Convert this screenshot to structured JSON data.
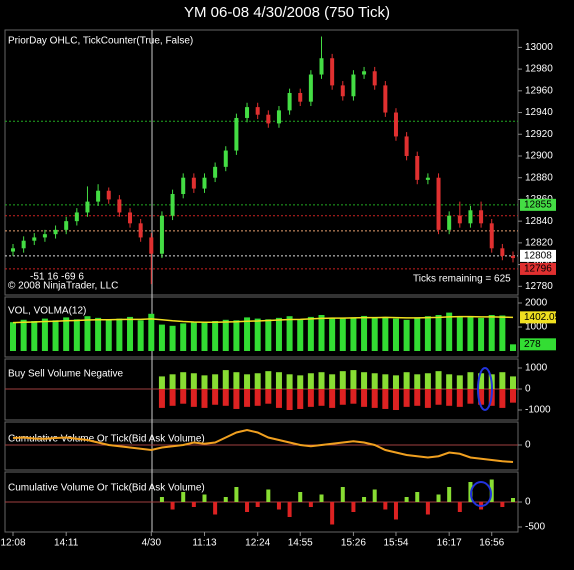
{
  "chart_data": [
    {
      "type": "candlestick",
      "title": "YM 06-08  4/30/2008 (750 Tick)",
      "label": "PriorDay OHLC, TickCounter(True, False)",
      "categories": [
        "12:08",
        null,
        null,
        null,
        null,
        "14:11",
        null,
        null,
        null,
        null,
        null,
        null,
        null,
        "4/30",
        null,
        null,
        null,
        null,
        "11:13",
        null,
        null,
        null,
        null,
        "12:24",
        null,
        null,
        null,
        "14:55",
        null,
        null,
        null,
        null,
        "15:26",
        null,
        null,
        null,
        "15:54",
        null,
        null,
        null,
        null,
        "16:17",
        null,
        null,
        null,
        "16:56",
        null,
        null
      ],
      "open": [
        12812,
        12815,
        12822,
        12825,
        12828,
        12832,
        12840,
        12848,
        12858,
        12868,
        12860,
        12848,
        12838,
        12825,
        12810,
        12845,
        12865,
        12880,
        12870,
        12880,
        12890,
        12905,
        12935,
        12945,
        12938,
        12930,
        12942,
        12958,
        12950,
        12975,
        12990,
        12965,
        12955,
        12975,
        12978,
        12965,
        12940,
        12918,
        12900,
        12878,
        12880,
        12832,
        12845,
        12838,
        12850,
        12838,
        12815,
        12808
      ],
      "close": [
        12815,
        12822,
        12825,
        12828,
        12832,
        12840,
        12848,
        12858,
        12868,
        12860,
        12848,
        12838,
        12825,
        12810,
        12845,
        12865,
        12880,
        12870,
        12880,
        12890,
        12905,
        12935,
        12945,
        12938,
        12930,
        12942,
        12958,
        12950,
        12975,
        12990,
        12965,
        12955,
        12975,
        12978,
        12965,
        12940,
        12918,
        12900,
        12878,
        12880,
        12832,
        12845,
        12838,
        12850,
        12838,
        12815,
        12808,
        12806
      ],
      "high": [
        12819,
        12826,
        12829,
        12832,
        12836,
        12844,
        12852,
        12872,
        12874,
        12871,
        12864,
        12852,
        12842,
        12829,
        12849,
        12869,
        12884,
        12884,
        12884,
        12894,
        12909,
        12939,
        12949,
        12949,
        12942,
        12946,
        12962,
        12962,
        12979,
        13010,
        12994,
        12969,
        12979,
        12982,
        12982,
        12969,
        12944,
        12922,
        12904,
        12884,
        12884,
        12849,
        12858,
        12854,
        12858,
        12842,
        12819,
        12812
      ],
      "low": [
        12808,
        12811,
        12818,
        12821,
        12824,
        12828,
        12836,
        12844,
        12854,
        12856,
        12844,
        12834,
        12821,
        12782,
        12806,
        12841,
        12861,
        12866,
        12866,
        12876,
        12886,
        12901,
        12931,
        12934,
        12926,
        12926,
        12938,
        12946,
        12946,
        12971,
        12961,
        12951,
        12951,
        12971,
        12961,
        12936,
        12914,
        12896,
        12874,
        12874,
        12828,
        12828,
        12834,
        12834,
        12834,
        12811,
        12804,
        12802
      ],
      "up_color": "#44dd44",
      "down_color": "#e03030",
      "ylim": [
        12772,
        13016
      ],
      "yticks": [
        12780,
        12800,
        12820,
        12840,
        12860,
        12880,
        12900,
        12920,
        12940,
        12960,
        12980,
        13000
      ],
      "levels": [
        {
          "value": 12932,
          "color": "#22aa22"
        },
        {
          "value": 12855,
          "color": "#22aa22"
        },
        {
          "value": 12845,
          "color": "#cc2222"
        },
        {
          "value": 12796,
          "color": "#cc2222"
        },
        {
          "value": 12831,
          "color": "#e8a070"
        },
        {
          "value": 12808,
          "color": "#dddddd"
        }
      ],
      "price_tags": [
        {
          "value": 12855,
          "color": "#44dd44"
        },
        {
          "value": 12808,
          "color": "#ffffff"
        },
        {
          "value": 12796,
          "color": "#e03030"
        }
      ],
      "annotations": [
        "-51 16 -69 6",
        "© 2008 NinjaTrader, LLC",
        "Ticks remaining = 625"
      ]
    },
    {
      "type": "bar",
      "label": "VOL, VOLMA(12)",
      "ylim": [
        -250,
        2250
      ],
      "yticks": [
        1000,
        2000
      ],
      "series": [
        {
          "color": "#33dd33",
          "values": [
            1200,
            1300,
            1250,
            1350,
            1280,
            1400,
            1320,
            1450,
            1380,
            1300,
            1350,
            1420,
            1280,
            1550,
            1100,
            1050,
            1150,
            1200,
            1180,
            1250,
            1300,
            1280,
            1400,
            1350,
            1320,
            1380,
            1450,
            1300,
            1420,
            1500,
            1380,
            1350,
            1400,
            1460,
            1380,
            1420,
            1350,
            1300,
            1400,
            1450,
            1500,
            1600,
            1450,
            1420,
            1380,
            1500,
            1480,
            278
          ]
        },
        {
          "type": "line",
          "color": "#f0e020",
          "values": [
            1180,
            1200,
            1210,
            1230,
            1240,
            1260,
            1270,
            1290,
            1300,
            1300,
            1310,
            1320,
            1320,
            1340,
            1300,
            1260,
            1230,
            1210,
            1200,
            1200,
            1210,
            1220,
            1240,
            1250,
            1270,
            1290,
            1310,
            1320,
            1340,
            1360,
            1370,
            1370,
            1380,
            1390,
            1390,
            1400,
            1390,
            1380,
            1380,
            1390,
            1400,
            1420,
            1430,
            1430,
            1420,
            1420,
            1410,
            1402.05
          ]
        }
      ]
    },
    {
      "type": "bar",
      "label": "Buy Sell Volume Negative",
      "ylim": [
        -1476,
        1429
      ],
      "yticks": [
        1000,
        0,
        -1000
      ],
      "series": [
        {
          "color": "#88dd33",
          "values": [
            null,
            null,
            null,
            null,
            null,
            null,
            null,
            null,
            null,
            null,
            null,
            null,
            null,
            null,
            600,
            700,
            800,
            750,
            650,
            700,
            900,
            800,
            700,
            750,
            850,
            800,
            700,
            650,
            750,
            800,
            700,
            850,
            900,
            800,
            750,
            700,
            650,
            800,
            700,
            750,
            850,
            700,
            650,
            800,
            750,
            700,
            800,
            600
          ]
        },
        {
          "color": "#dd2222",
          "values": [
            null,
            null,
            null,
            null,
            null,
            null,
            null,
            null,
            null,
            null,
            null,
            null,
            null,
            null,
            -900,
            -800,
            -700,
            -850,
            -900,
            -750,
            -800,
            -950,
            -850,
            -800,
            -700,
            -900,
            -1000,
            -950,
            -850,
            -800,
            -900,
            -750,
            -700,
            -850,
            -900,
            -950,
            -1000,
            -850,
            -800,
            -900,
            -750,
            -800,
            -850,
            -700,
            -750,
            -800,
            -900,
            -650
          ]
        }
      ]
    },
    {
      "type": "line",
      "label": "Cumulative Volume Or Tick(Bid Ask Volume)",
      "ylim": [
        -1000,
        920
      ],
      "yticks": [
        0
      ],
      "color": "#f0a020",
      "values": [
        280,
        300,
        260,
        250,
        280,
        300,
        250,
        200,
        100,
        0,
        -50,
        -100,
        -150,
        -200,
        -100,
        -50,
        0,
        100,
        50,
        100,
        300,
        500,
        600,
        500,
        300,
        200,
        100,
        0,
        -50,
        0,
        50,
        100,
        150,
        100,
        0,
        -200,
        -300,
        -400,
        -450,
        -500,
        -450,
        -300,
        -350,
        -500,
        -550,
        -600,
        -650,
        -680
      ]
    },
    {
      "type": "histogram-bar",
      "label": "Cumulative Volume Or Tick(Bid Ask Volume)",
      "ylim": [
        -600,
        600
      ],
      "yticks": [
        0,
        -500
      ],
      "up_color": "#88dd33",
      "down_color": "#dd2222",
      "values": [
        null,
        null,
        null,
        null,
        null,
        null,
        null,
        null,
        null,
        null,
        null,
        null,
        null,
        null,
        100,
        -150,
        200,
        -100,
        150,
        -250,
        100,
        300,
        -200,
        -100,
        250,
        -150,
        -300,
        200,
        -100,
        150,
        -450,
        300,
        -200,
        100,
        250,
        -150,
        -350,
        100,
        200,
        -250,
        150,
        300,
        -200,
        400,
        -150,
        450,
        -100,
        80
      ]
    }
  ]
}
